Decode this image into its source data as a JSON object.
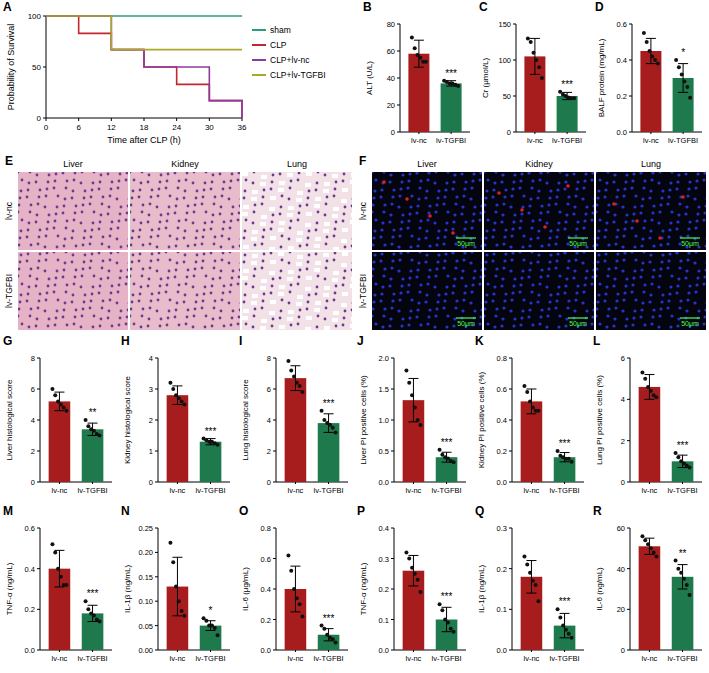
{
  "chart_data": [
    {
      "panel": "A",
      "type": "line",
      "line_style": "step",
      "x": [
        0,
        6,
        12,
        18,
        24,
        30,
        36
      ],
      "xlim": [
        0,
        36
      ],
      "xticks": [
        0,
        6,
        12,
        18,
        24,
        30,
        36
      ],
      "ylim": [
        0,
        100
      ],
      "yticks": [
        0,
        50,
        100
      ],
      "xlabel": "Time after CLP (h)",
      "ylabel": "Probability of Survival",
      "legend": "right",
      "series": [
        {
          "name": "sham",
          "color": "#2a9d7f",
          "values": [
            100,
            100,
            100,
            100,
            100,
            100,
            100
          ]
        },
        {
          "name": "CLP",
          "color": "#c1272d",
          "values": [
            100,
            83,
            67,
            50,
            33,
            17,
            0
          ]
        },
        {
          "name": "CLP+lv-nc",
          "color": "#8e3a9e",
          "values": [
            100,
            100,
            67,
            50,
            50,
            17,
            0
          ]
        },
        {
          "name": "CLP+lv-TGFBI",
          "color": "#a9a82b",
          "values": [
            100,
            100,
            67,
            67,
            67,
            67,
            67
          ]
        }
      ]
    },
    {
      "panel": "B",
      "type": "bar",
      "categories": [
        "lv-nc",
        "lv-TGFBI"
      ],
      "colors": [
        "#a71d1d",
        "#1e7a4c"
      ],
      "values": [
        58,
        36
      ],
      "errors": [
        10,
        2
      ],
      "points": [
        [
          70,
          62,
          57,
          55,
          52,
          52
        ],
        [
          38,
          37,
          36,
          36,
          35,
          34
        ]
      ],
      "ylabel": "ALT (U/L)",
      "ylim": [
        0,
        80
      ],
      "yticks": [
        0,
        20,
        40,
        60,
        80
      ],
      "annotation": "***"
    },
    {
      "panel": "C",
      "type": "bar",
      "categories": [
        "lv-nc",
        "lv-TGFBI"
      ],
      "colors": [
        "#a71d1d",
        "#1e7a4c"
      ],
      "values": [
        105,
        50
      ],
      "errors": [
        25,
        5
      ],
      "points": [
        [
          130,
          125,
          110,
          100,
          90,
          75
        ],
        [
          56,
          52,
          50,
          48,
          47,
          47
        ]
      ],
      "ylabel": "Cr (μmol/L)",
      "ylim": [
        0,
        150
      ],
      "yticks": [
        0,
        50,
        100,
        150
      ],
      "annotation": "***"
    },
    {
      "panel": "D",
      "type": "bar",
      "categories": [
        "lv-nc",
        "lv-TGFBI"
      ],
      "colors": [
        "#a71d1d",
        "#1e7a4c"
      ],
      "values": [
        0.45,
        0.3
      ],
      "errors": [
        0.07,
        0.08
      ],
      "points": [
        [
          0.55,
          0.5,
          0.45,
          0.42,
          0.4,
          0.38
        ],
        [
          0.4,
          0.36,
          0.32,
          0.28,
          0.25,
          0.19
        ]
      ],
      "ylabel": "BALF protein (mg/mL)",
      "ylim": [
        0,
        0.6
      ],
      "yticks": [
        {
          "value": 0,
          "label": "0.0"
        },
        0.2,
        0.4,
        0.6
      ],
      "annotation": "*"
    },
    {
      "panel": "G",
      "type": "bar",
      "categories": [
        "lv-nc",
        "lv-TGFBI"
      ],
      "colors": [
        "#a71d1d",
        "#1e7a4c"
      ],
      "values": [
        5.2,
        3.4
      ],
      "errors": [
        0.6,
        0.4
      ],
      "points": [
        [
          6.0,
          5.6,
          5.2,
          5.0,
          4.8,
          4.6
        ],
        [
          4.0,
          3.6,
          3.4,
          3.3,
          3.1,
          3.0
        ]
      ],
      "ylabel": "Liver histological score",
      "ylim": [
        0,
        8
      ],
      "yticks": [
        0,
        2,
        4,
        6,
        8
      ],
      "annotation": "**"
    },
    {
      "panel": "H",
      "type": "bar",
      "categories": [
        "lv-nc",
        "lv-TGFBI"
      ],
      "colors": [
        "#a71d1d",
        "#1e7a4c"
      ],
      "values": [
        2.8,
        1.3
      ],
      "errors": [
        0.3,
        0.1
      ],
      "points": [
        [
          3.2,
          3.0,
          2.8,
          2.7,
          2.6,
          2.5
        ],
        [
          1.4,
          1.35,
          1.3,
          1.3,
          1.25,
          1.2
        ]
      ],
      "ylabel": "Kidney histological score",
      "ylim": [
        0,
        4
      ],
      "yticks": [
        0,
        1,
        2,
        3,
        4
      ],
      "annotation": "***"
    },
    {
      "panel": "I",
      "type": "bar",
      "categories": [
        "lv-nc",
        "lv-TGFBI"
      ],
      "colors": [
        "#a71d1d",
        "#1e7a4c"
      ],
      "values": [
        6.7,
        3.8
      ],
      "errors": [
        0.8,
        0.6
      ],
      "points": [
        [
          7.8,
          7.2,
          6.8,
          6.4,
          6.2,
          5.8
        ],
        [
          4.6,
          4.0,
          3.8,
          3.7,
          3.5,
          3.2
        ]
      ],
      "ylabel": "Lung histological score",
      "ylim": [
        0,
        8
      ],
      "yticks": [
        0,
        2,
        4,
        6,
        8
      ],
      "annotation": "***"
    },
    {
      "panel": "J",
      "type": "bar",
      "categories": [
        "lv-nc",
        "lv-TGFBI"
      ],
      "colors": [
        "#a71d1d",
        "#1e7a4c"
      ],
      "values": [
        1.32,
        0.4
      ],
      "errors": [
        0.35,
        0.08
      ],
      "points": [
        [
          1.8,
          1.6,
          1.4,
          1.2,
          1.0,
          0.92
        ],
        [
          0.52,
          0.44,
          0.4,
          0.38,
          0.34,
          0.32
        ]
      ],
      "ylabel": "Liver PI positive cells (%)",
      "ylim": [
        0,
        2
      ],
      "yticks": [
        {
          "value": 0,
          "label": "0.0"
        },
        0.5,
        {
          "value": 1,
          "label": "1.0"
        },
        1.5,
        {
          "value": 2,
          "label": "2.0"
        }
      ],
      "annotation": "***"
    },
    {
      "panel": "K",
      "type": "bar",
      "categories": [
        "lv-nc",
        "lv-TGFBI"
      ],
      "colors": [
        "#a71d1d",
        "#1e7a4c"
      ],
      "values": [
        0.52,
        0.16
      ],
      "errors": [
        0.08,
        0.03
      ],
      "points": [
        [
          0.62,
          0.58,
          0.52,
          0.48,
          0.46,
          0.46
        ],
        [
          0.2,
          0.17,
          0.16,
          0.15,
          0.15,
          0.13
        ]
      ],
      "ylabel": "Kidney PI positive cells (%)",
      "ylim": [
        0,
        0.8
      ],
      "yticks": [
        {
          "value": 0,
          "label": "0.0"
        },
        0.2,
        0.4,
        0.6,
        0.8
      ],
      "annotation": "***"
    },
    {
      "panel": "L",
      "type": "bar",
      "categories": [
        "lv-nc",
        "lv-TGFBI"
      ],
      "colors": [
        "#a71d1d",
        "#1e7a4c"
      ],
      "values": [
        4.6,
        1.0
      ],
      "errors": [
        0.6,
        0.3
      ],
      "points": [
        [
          5.3,
          5.0,
          4.6,
          4.4,
          4.2,
          4.1
        ],
        [
          1.4,
          1.2,
          1.0,
          0.9,
          0.8,
          0.7
        ]
      ],
      "ylabel": "Lung PI positive cells (%)",
      "ylim": [
        0,
        6
      ],
      "yticks": [
        0,
        2,
        4,
        6
      ],
      "annotation": "***"
    },
    {
      "panel": "M",
      "type": "bar",
      "categories": [
        "lv-nc",
        "lv-TGFBI"
      ],
      "colors": [
        "#a71d1d",
        "#1e7a4c"
      ],
      "values": [
        0.4,
        0.18
      ],
      "errors": [
        0.09,
        0.04
      ],
      "points": [
        [
          0.52,
          0.48,
          0.4,
          0.36,
          0.32,
          0.32
        ],
        [
          0.24,
          0.2,
          0.18,
          0.17,
          0.15,
          0.14
        ]
      ],
      "ylabel": "TNF-α (ng/mL)",
      "ylim": [
        0,
        0.6
      ],
      "yticks": [
        {
          "value": 0,
          "label": "0.0"
        },
        0.2,
        0.4,
        0.6
      ],
      "annotation": "***"
    },
    {
      "panel": "N",
      "type": "bar",
      "categories": [
        "lv-nc",
        "lv-TGFBI"
      ],
      "colors": [
        "#a71d1d",
        "#1e7a4c"
      ],
      "values": [
        0.13,
        0.05
      ],
      "errors": [
        0.06,
        0.01
      ],
      "points": [
        [
          0.22,
          0.18,
          0.13,
          0.1,
          0.08,
          0.07
        ],
        [
          0.065,
          0.06,
          0.05,
          0.05,
          0.045,
          0.03
        ]
      ],
      "ylabel": "IL-1β (ng/mL)",
      "ylim": [
        0,
        0.25
      ],
      "yticks": [
        {
          "value": 0,
          "label": "0.00"
        },
        0.05,
        {
          "value": 0.1,
          "label": "0.10"
        },
        0.15,
        {
          "value": 0.2,
          "label": "0.20"
        },
        0.25
      ],
      "annotation": "*"
    },
    {
      "panel": "O",
      "type": "bar",
      "categories": [
        "lv-nc",
        "lv-TGFBI"
      ],
      "colors": [
        "#a71d1d",
        "#1e7a4c"
      ],
      "values": [
        0.4,
        0.1
      ],
      "errors": [
        0.15,
        0.04
      ],
      "points": [
        [
          0.62,
          0.52,
          0.4,
          0.34,
          0.3,
          0.22
        ],
        [
          0.16,
          0.14,
          0.1,
          0.08,
          0.07,
          0.05
        ]
      ],
      "ylabel": "IL-6 (μg/mL)",
      "ylim": [
        0,
        0.8
      ],
      "yticks": [
        {
          "value": 0,
          "label": "0.0"
        },
        0.2,
        0.4,
        0.6,
        0.8
      ],
      "annotation": "***"
    },
    {
      "panel": "P",
      "type": "bar",
      "categories": [
        "lv-nc",
        "lv-TGFBI"
      ],
      "colors": [
        "#a71d1d",
        "#1e7a4c"
      ],
      "values": [
        0.26,
        0.1
      ],
      "errors": [
        0.05,
        0.04
      ],
      "points": [
        [
          0.32,
          0.3,
          0.27,
          0.25,
          0.23,
          0.19
        ],
        [
          0.15,
          0.13,
          0.1,
          0.09,
          0.07,
          0.06
        ]
      ],
      "ylabel": "TNF-α (ng/mL)",
      "ylim": [
        0,
        0.4
      ],
      "yticks": [
        {
          "value": 0,
          "label": "0.0"
        },
        0.1,
        0.2,
        0.3,
        0.4
      ],
      "annotation": "***"
    },
    {
      "panel": "Q",
      "type": "bar",
      "categories": [
        "lv-nc",
        "lv-TGFBI"
      ],
      "colors": [
        "#a71d1d",
        "#1e7a4c"
      ],
      "values": [
        0.18,
        0.06
      ],
      "errors": [
        0.04,
        0.03
      ],
      "points": [
        [
          0.23,
          0.21,
          0.19,
          0.17,
          0.16,
          0.12
        ],
        [
          0.1,
          0.08,
          0.06,
          0.05,
          0.04,
          0.03
        ]
      ],
      "ylabel": "IL-1β (ng/mL)",
      "ylim": [
        0,
        0.3
      ],
      "yticks": [
        {
          "value": 0,
          "label": "0.0"
        },
        0.1,
        0.2,
        0.3
      ],
      "annotation": "***"
    },
    {
      "panel": "R",
      "type": "bar",
      "categories": [
        "lv-nc",
        "lv-TGFBI"
      ],
      "colors": [
        "#a71d1d",
        "#1e7a4c"
      ],
      "values": [
        51,
        36
      ],
      "errors": [
        4,
        6
      ],
      "points": [
        [
          56,
          54,
          52,
          50,
          48,
          46
        ],
        [
          44,
          40,
          38,
          35,
          32,
          27
        ]
      ],
      "ylabel": "IL-6 (ng/mL)",
      "ylim": [
        0,
        60
      ],
      "yticks": [
        0,
        20,
        40,
        60
      ],
      "annotation": "**"
    }
  ],
  "images": [
    {
      "panel": "E",
      "columns": [
        "Liver",
        "Kidney",
        "Lung"
      ],
      "rows": [
        "lv-nc",
        "lv-TGFBI"
      ]
    },
    {
      "panel": "F",
      "columns": [
        "Liver",
        "Kidney",
        "Lung"
      ],
      "rows": [
        "lv-nc",
        "lv-TGFBI"
      ],
      "scale_bar": "50μm"
    }
  ]
}
